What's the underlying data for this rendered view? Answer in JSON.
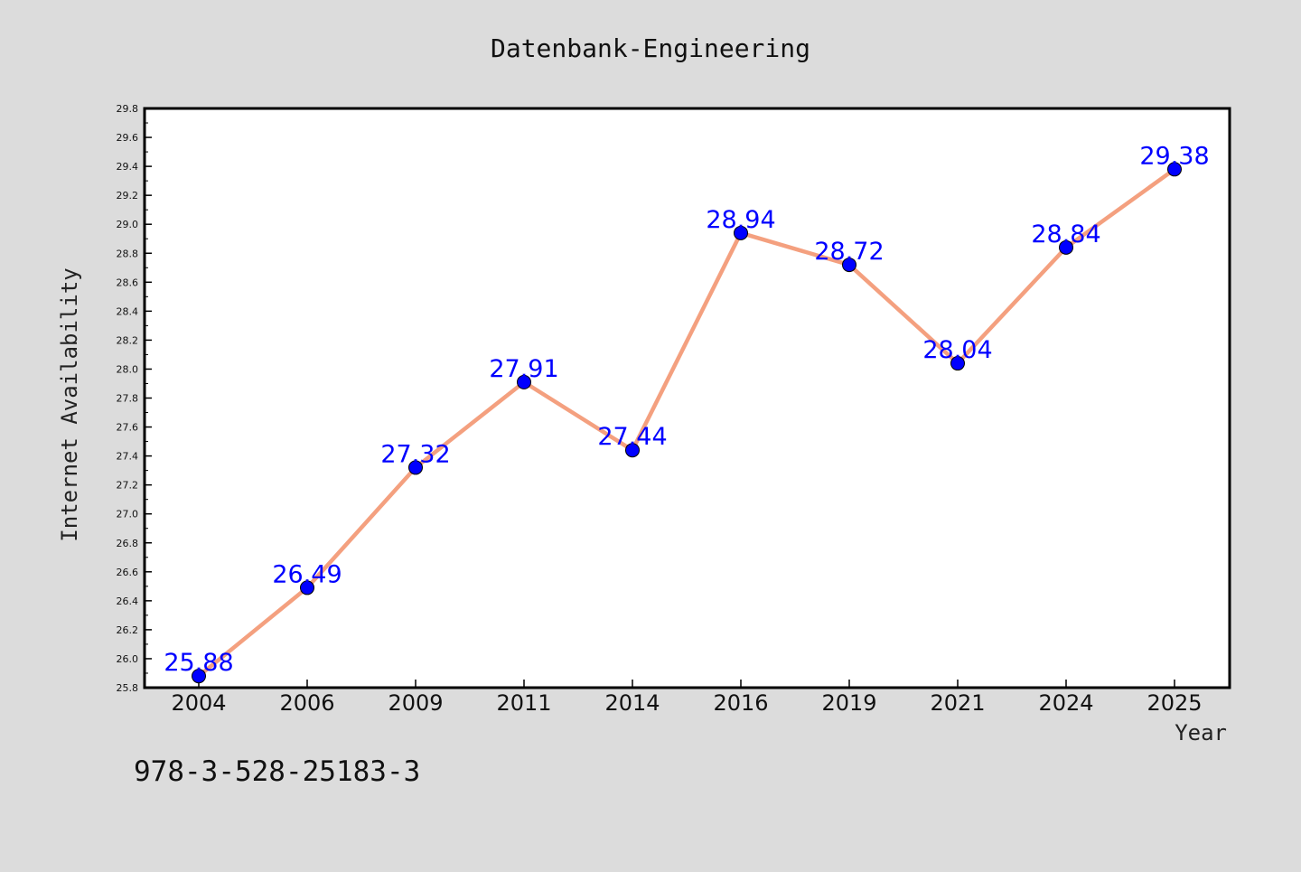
{
  "chart_data": {
    "type": "line",
    "title": "Datenbank-Engineering",
    "xlabel": "Year",
    "ylabel": "Internet Availability",
    "categories": [
      "2004",
      "2006",
      "2009",
      "2011",
      "2014",
      "2016",
      "2019",
      "2021",
      "2024",
      "2025"
    ],
    "series": [
      {
        "values": [
          25.88,
          26.49,
          27.32,
          27.91,
          27.44,
          28.94,
          28.72,
          28.04,
          28.84,
          29.38
        ],
        "data_labels": [
          "25.88",
          "26.49",
          "27.32",
          "27.91",
          "27.44",
          "28.94",
          "28.72",
          "28.04",
          "28.84",
          "29.38"
        ],
        "line_color": "#f4a07f",
        "marker_color": "#0000ff"
      }
    ],
    "ylim": [
      25.8,
      29.8
    ],
    "yticks": [
      "25.8",
      "26.0",
      "26.2",
      "26.4",
      "26.6",
      "26.8",
      "27.0",
      "27.2",
      "27.4",
      "27.6",
      "27.8",
      "28.0",
      "28.2",
      "28.4",
      "28.6",
      "28.8",
      "29.0",
      "29.2",
      "29.4",
      "29.6",
      "29.8"
    ],
    "grid": false,
    "legend": "none"
  },
  "footer": {
    "isbn": "978-3-528-25183-3"
  },
  "colors": {
    "background": "#dcdcdc",
    "plot_background": "#ffffff",
    "line": "#f4a07f",
    "marker": "#0000ff",
    "data_label": "#0000ff"
  }
}
